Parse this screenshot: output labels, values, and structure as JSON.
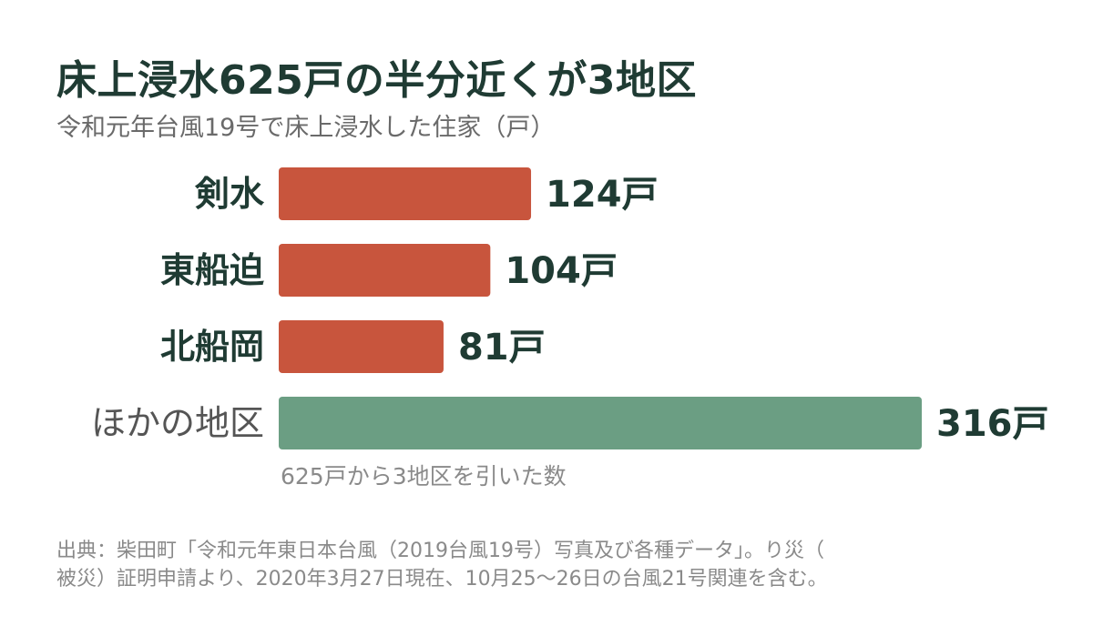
{
  "title": "床上浸水625戸の半分近くが3地区",
  "subtitle": "令和元年台風19号で床上浸水した住家（戸）",
  "chart_data": {
    "type": "bar",
    "orientation": "horizontal",
    "categories": [
      "剣水",
      "東船迫",
      "北船岡",
      "ほかの地区"
    ],
    "values": [
      124,
      104,
      81,
      316
    ],
    "value_labels": [
      "124戸",
      "104戸",
      "81戸",
      "316戸"
    ],
    "unit": "戸",
    "bar_colors": [
      "#c8553d",
      "#c8553d",
      "#c8553d",
      "#6b9e83"
    ],
    "label_bold": [
      true,
      true,
      true,
      false
    ],
    "annotation": "625戸から3地区を引いた数",
    "xlim": [
      0,
      316
    ],
    "grid": false
  },
  "source": {
    "line1": "出典：柴田町「令和元年東日本台風（2019台風19号）写真及び各種データ」。り災（",
    "line2": "被災）証明申請より、2020年3月27日現在、10月25〜26日の台風21号関連を含む。"
  },
  "colors": {
    "title": "#1f3b33",
    "highlight": "#c8553d",
    "other": "#6b9e83"
  }
}
